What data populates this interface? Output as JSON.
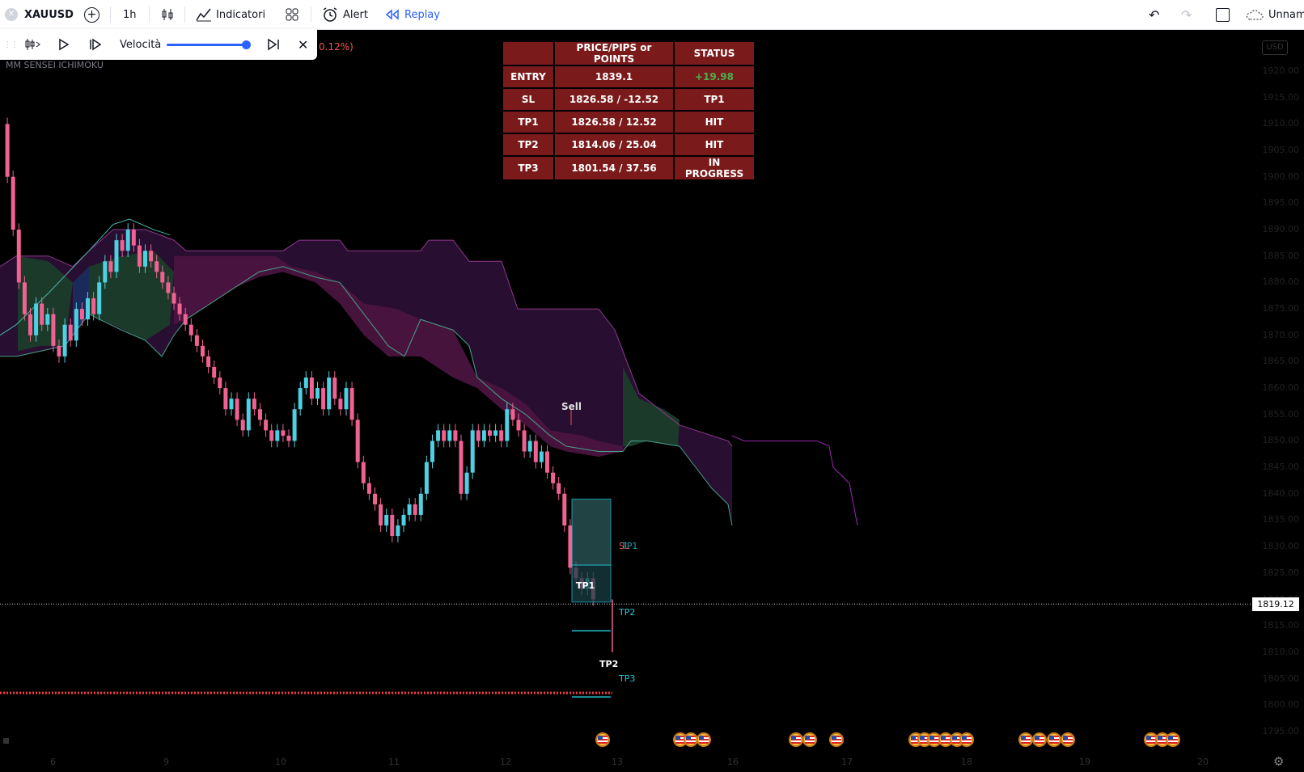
{
  "toolbar": {
    "symbol": "XAUUSD",
    "interval": "1h",
    "indicators_label": "Indicatori",
    "alert_label": "Alert",
    "replay_label": "Replay",
    "layout_name": "Unname"
  },
  "replay": {
    "speed_label": "Velocità",
    "speed_level": 0.98,
    "change_fragment": "0.12%)"
  },
  "indicator_name": "MM SENSEI ICHIMOKU",
  "currency_badge": "USD",
  "price_axis": {
    "min": 1795,
    "max": 1920,
    "step": 5,
    "labels": [
      "1920.00",
      "1915.00",
      "1910.00",
      "1905.00",
      "1900.00",
      "1895.00",
      "1890.00",
      "1885.00",
      "1880.00",
      "1875.00",
      "1870.00",
      "1865.00",
      "1860.00",
      "1855.00",
      "1850.00",
      "1845.00",
      "1840.00",
      "1835.00",
      "1830.00",
      "1825.00",
      "1820.00",
      "1815.00",
      "1810.00",
      "1805.00",
      "1800.00",
      "1795.00"
    ],
    "current_price": "1819.12"
  },
  "time_axis": {
    "labels": [
      "6",
      "9",
      "10",
      "11",
      "12",
      "13",
      "16",
      "17",
      "18",
      "19",
      "20"
    ]
  },
  "table": {
    "headers": [
      "",
      "PRICE/PIPS or POINTS",
      "STATUS"
    ],
    "rows": [
      {
        "label": "ENTRY",
        "value": "1839.1",
        "status": "+19.98",
        "status_color": "#4caf50"
      },
      {
        "label": "SL",
        "value": "1826.58 / -12.52",
        "status": "TP1",
        "status_color": "#ffffff"
      },
      {
        "label": "TP1",
        "value": "1826.58 / 12.52",
        "status": "HIT",
        "status_color": "#ffffff"
      },
      {
        "label": "TP2",
        "value": "1814.06 / 25.04",
        "status": "HIT",
        "status_color": "#ffffff"
      },
      {
        "label": "TP3",
        "value": "1801.54 / 37.56",
        "status": "IN PROGRESS",
        "status_color": "#ffffff"
      }
    ]
  },
  "chart_labels": {
    "sell": "Sell",
    "sl_tag": "SL",
    "tp1_tag": "TP1",
    "tp2_tag": "TP2",
    "tp3_tag": "TP3",
    "tp1_marker": "TP1",
    "tp2_marker": "TP2"
  },
  "colors": {
    "bull": "#4dd0e1",
    "bear": "#f06292",
    "cloud_bull": "#1b3a2a",
    "cloud_bear": "#4a1440",
    "cloud_dark": "#2a0f33",
    "target": "#26c6da",
    "table_bg": "#7a1a1a"
  }
}
